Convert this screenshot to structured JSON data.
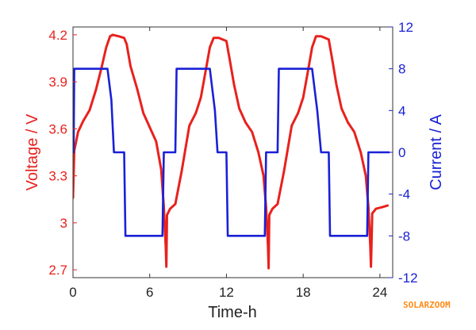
{
  "chart_data": {
    "type": "line",
    "title": "",
    "xlabel": "Time-h",
    "ylabel_left": "Voltage / V",
    "ylabel_right": "Current / A",
    "xlim": [
      0,
      25
    ],
    "ylim_left": [
      2.65,
      4.25
    ],
    "ylim_right": [
      -12,
      12
    ],
    "x_ticks": [
      0,
      6,
      12,
      18,
      24
    ],
    "y_left_ticks": [
      2.7,
      3,
      3.3,
      3.6,
      3.9,
      4.2
    ],
    "y_left_tick_labels": [
      "2.7",
      "3",
      "3.3",
      "3.6",
      "3.9",
      "4.2"
    ],
    "y_right_ticks": [
      -12,
      -8,
      -4,
      0,
      4,
      8,
      12
    ],
    "grid": false,
    "series": [
      {
        "name": "Voltage",
        "axis": "left",
        "color": "#e8211d",
        "x": [
          0,
          0.1,
          0.4,
          0.8,
          1.3,
          1.8,
          2.2,
          2.6,
          2.9,
          3.1,
          3.6,
          4.0,
          4.2,
          4.5,
          5.0,
          5.5,
          6.0,
          6.5,
          6.9,
          7.1,
          7.25,
          7.3,
          7.35,
          7.6,
          8.0,
          8.5,
          9.1,
          9.6,
          10.0,
          10.4,
          10.7,
          11.0,
          11.4,
          12.0,
          12.3,
          12.6,
          13.0,
          13.5,
          14.0,
          14.5,
          14.9,
          15.1,
          15.25,
          15.3,
          15.35,
          15.6,
          16.0,
          16.5,
          17.1,
          17.6,
          18.0,
          18.4,
          18.7,
          19.0,
          19.4,
          20.0,
          20.3,
          20.6,
          21.0,
          21.5,
          22.0,
          22.5,
          22.9,
          23.1,
          23.25,
          23.3,
          23.4,
          23.7,
          24.2,
          24.6
        ],
        "values": [
          3.16,
          3.46,
          3.58,
          3.65,
          3.72,
          3.85,
          3.98,
          4.12,
          4.19,
          4.2,
          4.19,
          4.18,
          4.14,
          4.0,
          3.86,
          3.7,
          3.61,
          3.52,
          3.34,
          3.1,
          2.85,
          2.72,
          3.05,
          3.09,
          3.12,
          3.33,
          3.62,
          3.7,
          3.8,
          3.98,
          4.12,
          4.18,
          4.18,
          4.16,
          4.02,
          3.88,
          3.73,
          3.64,
          3.58,
          3.45,
          3.3,
          3.1,
          2.85,
          2.71,
          3.05,
          3.09,
          3.12,
          3.33,
          3.62,
          3.7,
          3.8,
          3.98,
          4.12,
          4.19,
          4.19,
          4.17,
          4.03,
          3.88,
          3.73,
          3.64,
          3.58,
          3.45,
          3.3,
          3.1,
          2.85,
          2.72,
          3.06,
          3.09,
          3.1,
          3.11
        ]
      },
      {
        "name": "Current",
        "axis": "right",
        "color": "#1a21d6",
        "x": [
          0,
          0.05,
          0.1,
          2.7,
          3.0,
          3.2,
          4.0,
          4.1,
          7.0,
          7.1,
          7.6,
          7.7,
          8.0,
          8.1,
          10.7,
          11.1,
          11.3,
          12.0,
          12.1,
          15.0,
          15.1,
          15.6,
          15.7,
          16.0,
          16.1,
          18.7,
          19.1,
          19.4,
          20.0,
          20.1,
          23.0,
          23.1,
          23.6,
          23.7,
          24.7
        ],
        "values": [
          0,
          0,
          8,
          8,
          5,
          0,
          0,
          -8,
          -8,
          0,
          0,
          0,
          0,
          8,
          8,
          4,
          0,
          0,
          -8,
          -8,
          0,
          0,
          0,
          0,
          8,
          8,
          4,
          0,
          0,
          -8,
          -8,
          0,
          0,
          0,
          0
        ]
      }
    ],
    "watermark": "SOLARZOOM",
    "colors": {
      "voltage": "#e8211d",
      "current": "#1a21d6",
      "axis": "#333333",
      "watermark": "#ff8c1a"
    }
  }
}
